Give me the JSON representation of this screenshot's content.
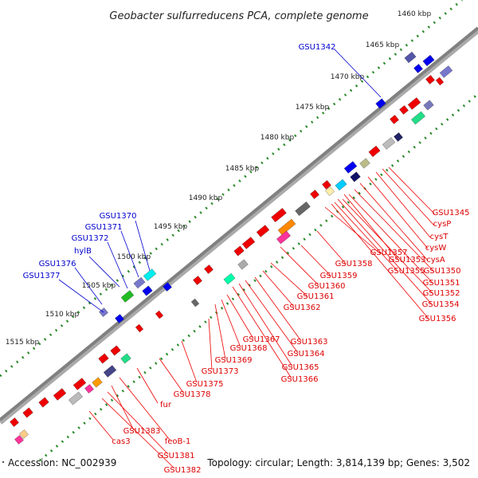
{
  "title": "Geobacter sulfurreducens PCA, complete genome",
  "footer": {
    "accession": "Accession: NC_002939",
    "summary": "Topology: circular; Length: 3,814,139 bp; Genes: 3,502"
  },
  "colors": {
    "forward_label": "#0000cc",
    "reverse_label": "#dd0000",
    "backbone": "#808080",
    "tick": "#2a8a2a"
  },
  "kbp_labels": [
    "1460 kbp",
    "1465 kbp",
    "1470 kbp",
    "1475 kbp",
    "1480 kbp",
    "1485 kbp",
    "1490 kbp",
    "1495 kbp",
    "1500 kbp",
    "1505 kbp",
    "1510 kbp",
    "1515 kbp"
  ],
  "forward_genes": [
    "GSU1342",
    "GSU1370",
    "GSU1371",
    "GSU1372",
    "hylB",
    "GSU1376",
    "GSU1377"
  ],
  "reverse_genes": [
    "GSU1345",
    "cysP",
    "cysT",
    "cysW",
    "cysA",
    "GSU1350",
    "GSU1351",
    "GSU1352",
    "GSU1353",
    "GSU1354",
    "GSU1355",
    "GSU1356",
    "GSU1357",
    "GSU1358",
    "GSU1359",
    "GSU1360",
    "GSU1361",
    "GSU1362",
    "GSU1363",
    "GSU1364",
    "GSU1365",
    "GSU1366",
    "GSU1367",
    "GSU1368",
    "GSU1369",
    "GSU1373",
    "GSU1375",
    "GSU1378",
    "fur",
    "feoB-1",
    "cas3",
    "GSU1383",
    "GSU1381",
    "GSU1382"
  ]
}
